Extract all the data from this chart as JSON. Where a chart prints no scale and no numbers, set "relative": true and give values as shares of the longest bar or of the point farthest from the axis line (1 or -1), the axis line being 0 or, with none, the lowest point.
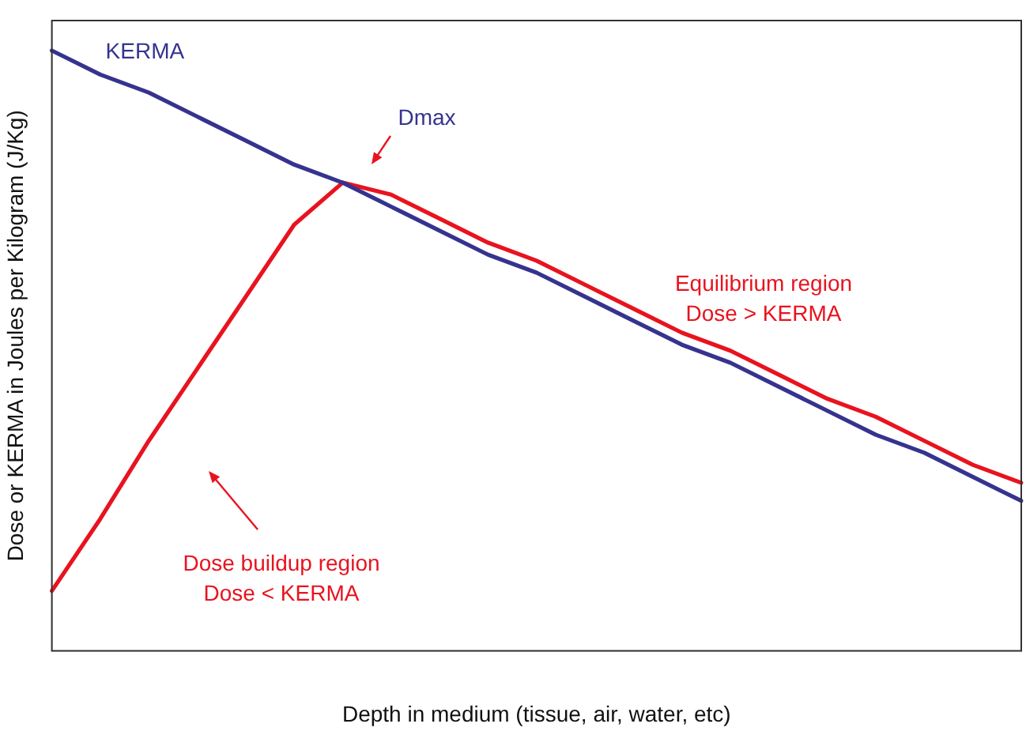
{
  "chart_data": {
    "type": "line",
    "relative": true,
    "xlabel": "Depth in medium (tissue, air, water, etc)",
    "ylabel": "Dose or KERMA in Joules per Kilogram (J/Kg)",
    "categories": [
      null,
      null,
      null,
      null,
      null,
      null,
      null,
      null,
      null,
      null,
      null,
      null,
      null,
      null,
      null,
      null,
      null,
      null,
      null,
      null,
      null
    ],
    "series": [
      {
        "name": "KERMA",
        "color": "#36338f",
        "values": [
          1.0,
          0.96,
          0.93,
          0.89,
          0.85,
          0.81,
          0.78,
          0.74,
          0.7,
          0.66,
          0.63,
          0.59,
          0.55,
          0.51,
          0.48,
          0.44,
          0.4,
          0.36,
          0.33,
          0.29,
          0.25
        ]
      },
      {
        "color": "#e8131f",
        "values": [
          0.1,
          0.22,
          0.35,
          0.47,
          0.59,
          0.71,
          0.78,
          0.76,
          0.72,
          0.68,
          0.65,
          0.61,
          0.57,
          0.53,
          0.5,
          0.46,
          0.42,
          0.39,
          0.35,
          0.31,
          0.28
        ]
      }
    ],
    "annotations": [
      "Dmax",
      "Equilibrium region\nDose > KERMA",
      "Dose buildup region\nDose < KERMA"
    ],
    "grid": false,
    "legend": false,
    "marker": "none",
    "line_style": "solid"
  }
}
